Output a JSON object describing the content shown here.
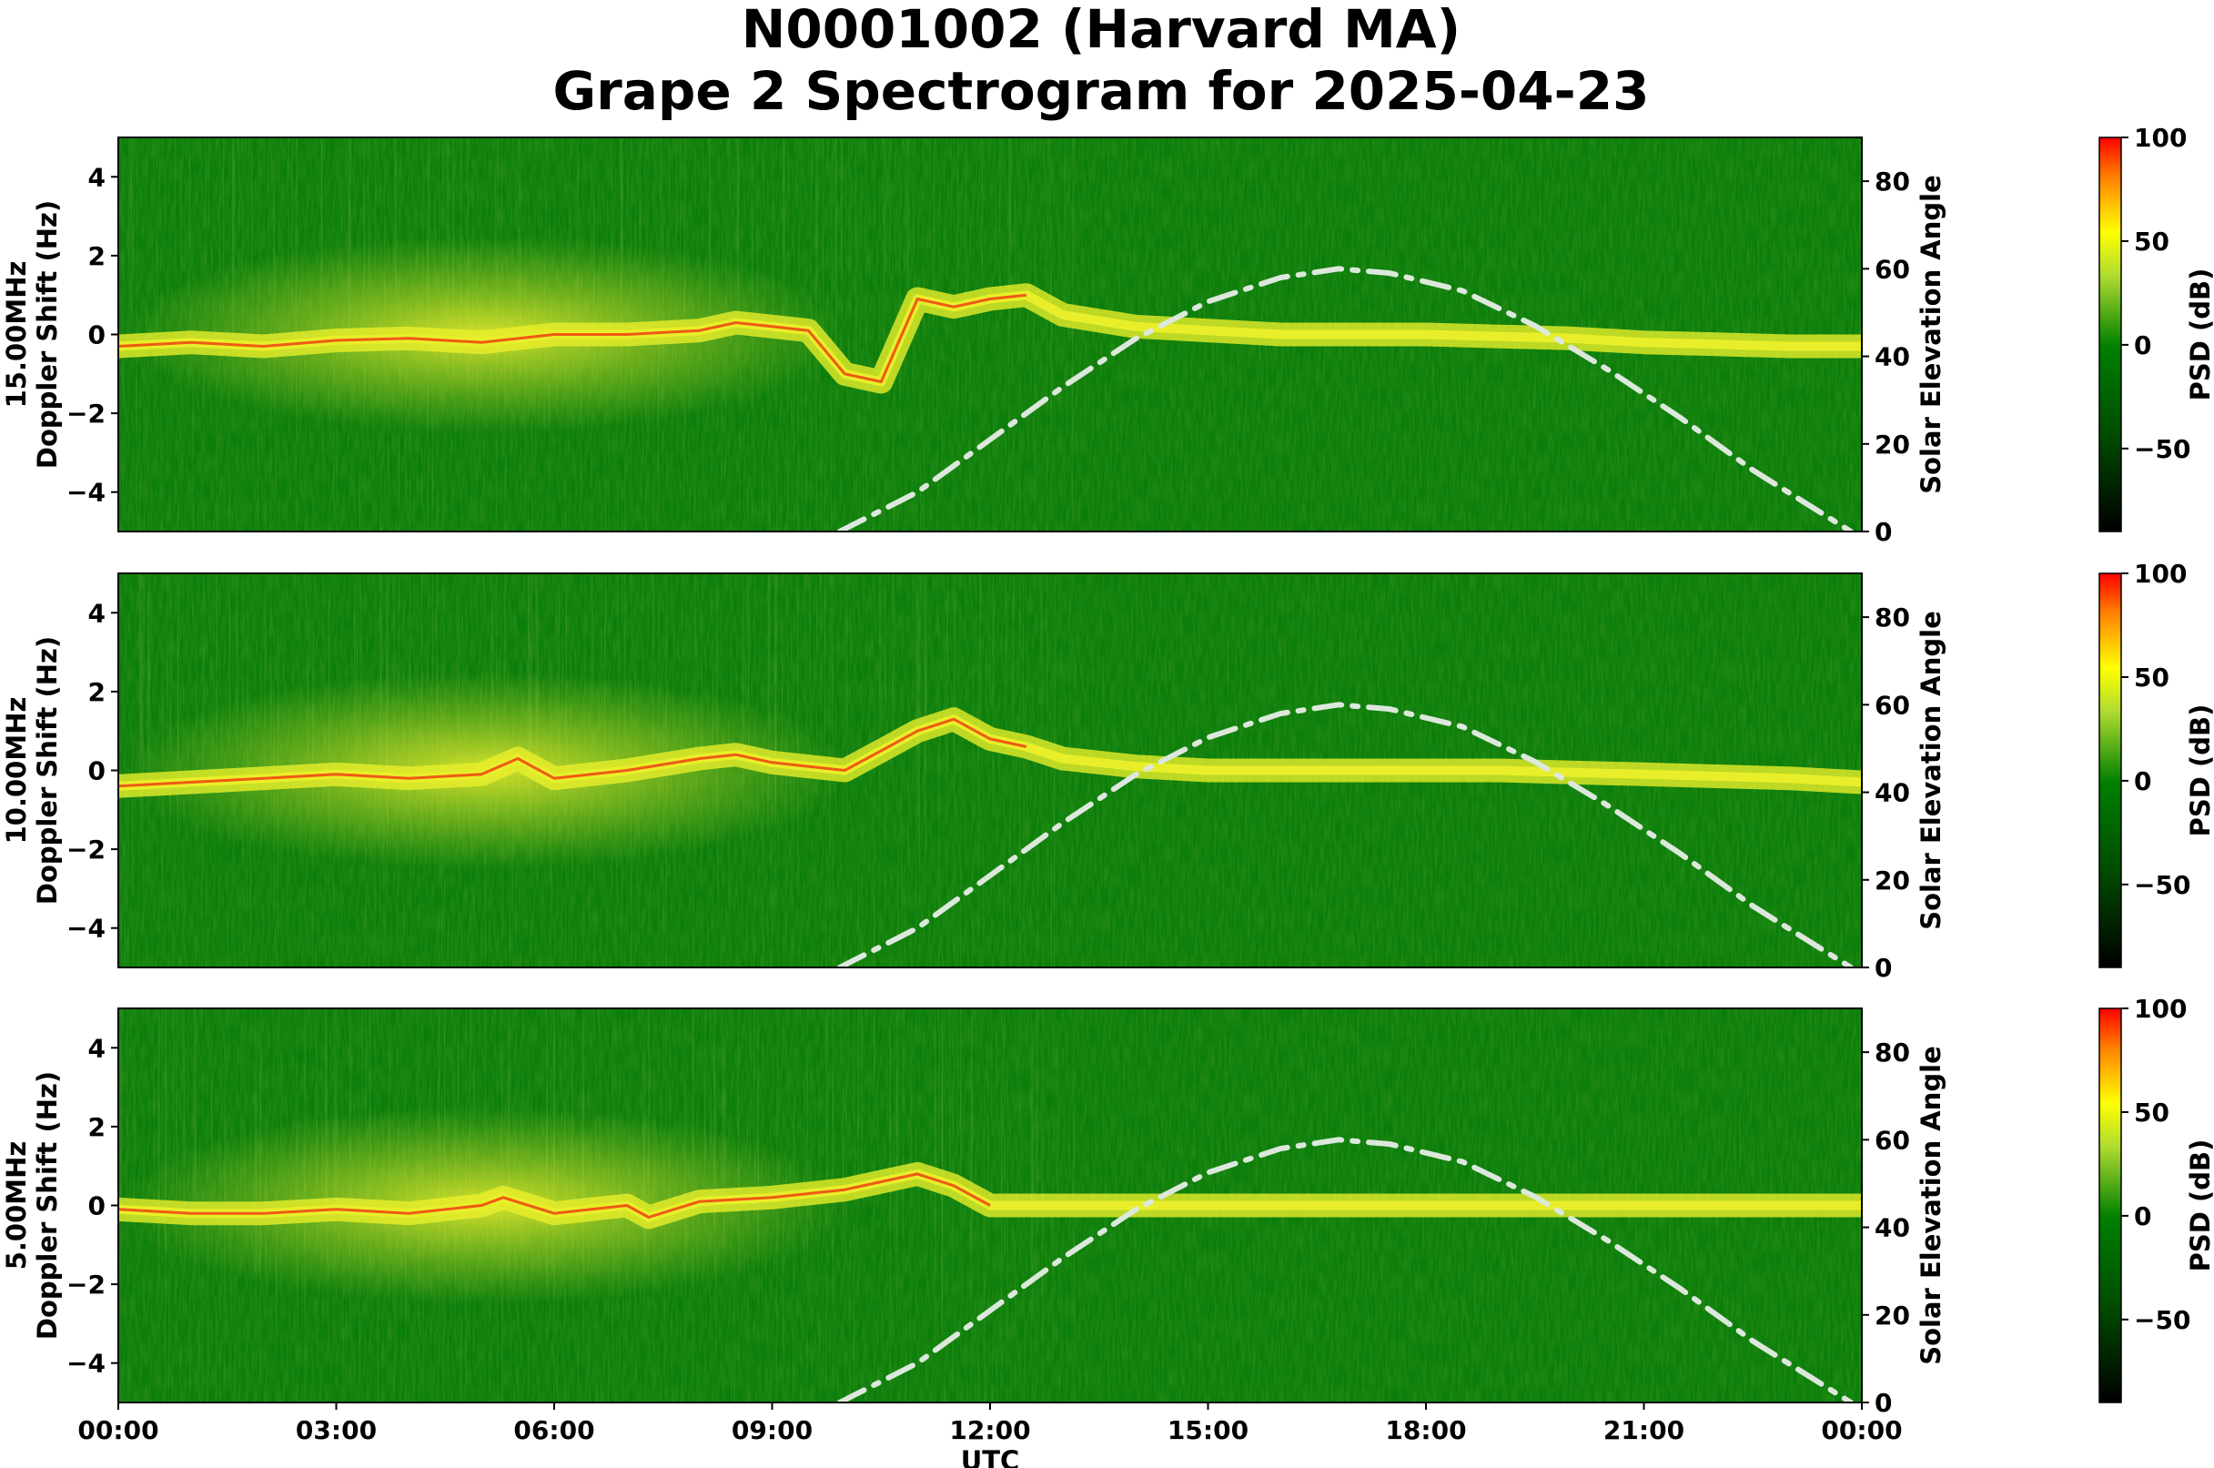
{
  "figure": {
    "title_line1": "N0001002 (Harvard MA)",
    "title_line2": "Grape 2 Spectrogram for 2025-04-23"
  },
  "colors": {
    "background_green": "#0a7d0a",
    "band_yellow": "#e8ef2a",
    "band_red": "#f04010",
    "solar_curve": "#dce8dc"
  },
  "chart_data": [
    {
      "type": "heatmap",
      "frequency_label": "15.00MHz",
      "ylabel": "Doppler Shift (Hz)",
      "ylim": [
        -5,
        5
      ],
      "yticks": [
        4,
        2,
        0,
        -2,
        -4
      ],
      "y2label": "Solar Elevation Angle",
      "y2lim": [
        0,
        90
      ],
      "y2ticks": [
        80,
        60,
        40,
        20,
        0
      ],
      "colorbar_label": "PSD (dB)",
      "colorbar_range": [
        -90,
        100
      ],
      "colorbar_ticks": [
        100,
        50,
        0,
        -50
      ],
      "solar_elevation_curve": {
        "x_hours": [
          9.93,
          11,
          12,
          13,
          14,
          15,
          16,
          16.8,
          17.5,
          18.5,
          19.5,
          20.5,
          21.5,
          22.5,
          23.85
        ],
        "y_deg": [
          0,
          9,
          21,
          33,
          44,
          52.5,
          58,
          60,
          59,
          55,
          47,
          37,
          26,
          14,
          0
        ]
      },
      "doppler_trace": {
        "x_hours": [
          0,
          1,
          2,
          3,
          4,
          5,
          6,
          7,
          8,
          8.5,
          9,
          9.5,
          10,
          10.5,
          11,
          11.5,
          12,
          12.5,
          13,
          14,
          15,
          16,
          17,
          18,
          19,
          20,
          21,
          22,
          23,
          24
        ],
        "y_hz": [
          -0.3,
          -0.2,
          -0.3,
          -0.15,
          -0.1,
          -0.2,
          0.0,
          0.0,
          0.1,
          0.3,
          0.2,
          0.1,
          -1.0,
          -1.2,
          0.9,
          0.7,
          0.9,
          1.0,
          0.5,
          0.2,
          0.1,
          0.0,
          0.0,
          0.0,
          -0.05,
          -0.1,
          -0.2,
          -0.25,
          -0.3,
          -0.3
        ]
      }
    },
    {
      "type": "heatmap",
      "frequency_label": "10.00MHz",
      "ylabel": "Doppler Shift (Hz)",
      "ylim": [
        -5,
        5
      ],
      "yticks": [
        4,
        2,
        0,
        -2,
        -4
      ],
      "y2label": "Solar Elevation Angle",
      "y2lim": [
        0,
        90
      ],
      "y2ticks": [
        80,
        60,
        40,
        20,
        0
      ],
      "colorbar_label": "PSD (dB)",
      "colorbar_range": [
        -90,
        100
      ],
      "colorbar_ticks": [
        100,
        50,
        0,
        -50
      ],
      "solar_elevation_curve": {
        "x_hours": [
          9.93,
          11,
          12,
          13,
          14,
          15,
          16,
          16.8,
          17.5,
          18.5,
          19.5,
          20.5,
          21.5,
          22.5,
          23.85
        ],
        "y_deg": [
          0,
          9,
          21,
          33,
          44,
          52.5,
          58,
          60,
          59,
          55,
          47,
          37,
          26,
          14,
          0
        ]
      },
      "doppler_trace": {
        "x_hours": [
          0,
          1,
          2,
          3,
          4,
          5,
          5.5,
          6,
          7,
          8,
          8.5,
          9,
          10,
          10.5,
          11,
          11.5,
          12,
          12.5,
          13,
          14,
          15,
          16,
          17,
          18,
          19,
          20,
          21,
          22,
          23,
          24
        ],
        "y_hz": [
          -0.4,
          -0.3,
          -0.2,
          -0.1,
          -0.2,
          -0.1,
          0.3,
          -0.2,
          0.0,
          0.3,
          0.4,
          0.2,
          0.0,
          0.5,
          1.0,
          1.3,
          0.8,
          0.6,
          0.3,
          0.1,
          0.0,
          0.0,
          0.0,
          0.0,
          0.0,
          -0.05,
          -0.1,
          -0.15,
          -0.2,
          -0.3
        ]
      }
    },
    {
      "type": "heatmap",
      "frequency_label": "5.00MHz",
      "ylabel": "Doppler Shift (Hz)",
      "ylim": [
        -5,
        5
      ],
      "yticks": [
        4,
        2,
        0,
        -2,
        -4
      ],
      "y2label": "Solar Elevation Angle",
      "y2lim": [
        0,
        90
      ],
      "y2ticks": [
        80,
        60,
        40,
        20,
        0
      ],
      "colorbar_label": "PSD (dB)",
      "colorbar_range": [
        -90,
        100
      ],
      "colorbar_ticks": [
        100,
        50,
        0,
        -50
      ],
      "xlabel": "UTC",
      "xlim_hours": [
        0,
        24
      ],
      "xticks": [
        "00:00",
        "03:00",
        "06:00",
        "09:00",
        "12:00",
        "15:00",
        "18:00",
        "21:00",
        "00:00"
      ],
      "solar_elevation_curve": {
        "x_hours": [
          9.93,
          11,
          12,
          13,
          14,
          15,
          16,
          16.8,
          17.5,
          18.5,
          19.5,
          20.5,
          21.5,
          22.5,
          23.85
        ],
        "y_deg": [
          0,
          9,
          21,
          33,
          44,
          52.5,
          58,
          60,
          59,
          55,
          47,
          37,
          26,
          14,
          0
        ]
      },
      "doppler_trace": {
        "x_hours": [
          0,
          1,
          2,
          3,
          4,
          5,
          5.3,
          6,
          7,
          7.3,
          8,
          9,
          10,
          10.5,
          11,
          11.5,
          12,
          13,
          14,
          16,
          18,
          20,
          22,
          24
        ],
        "y_hz": [
          -0.1,
          -0.2,
          -0.2,
          -0.1,
          -0.2,
          0.0,
          0.2,
          -0.2,
          0.0,
          -0.3,
          0.1,
          0.2,
          0.4,
          0.6,
          0.8,
          0.5,
          0.0,
          0.0,
          0.0,
          0.0,
          0.0,
          0.0,
          0.0,
          0.0
        ]
      }
    }
  ]
}
